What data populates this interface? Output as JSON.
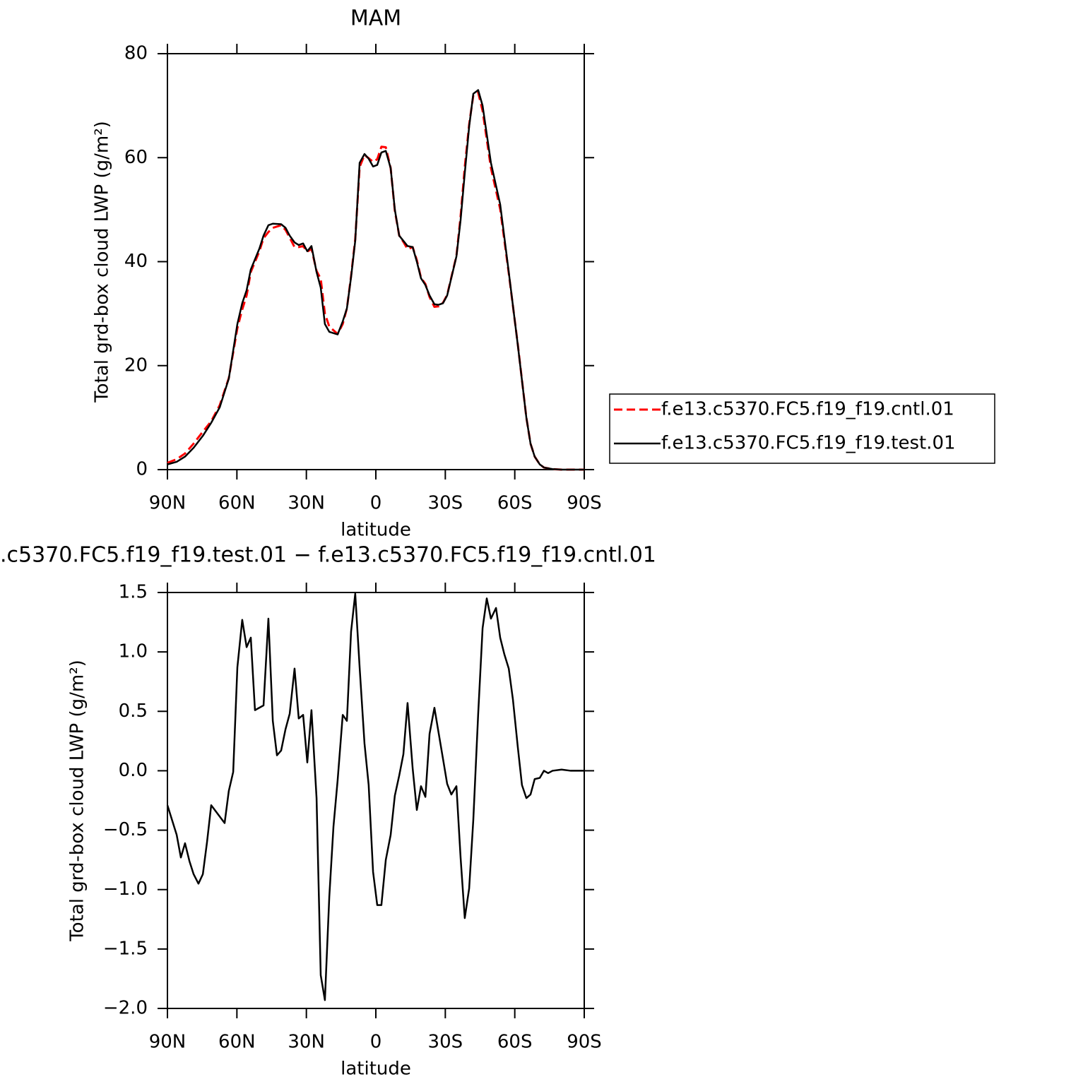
{
  "chart_data": [
    {
      "type": "line",
      "title": "MAM",
      "x_label": "latitude",
      "y_label": "Total grd-box cloud LWP (g/m²)",
      "x": [
        90,
        86,
        82.4,
        78.7,
        74.7,
        71.1,
        67.4,
        63.5,
        59.8,
        57.7,
        55.8,
        54,
        50.3,
        48.5,
        46.4,
        44.5,
        40.9,
        39,
        37.2,
        35.1,
        33.3,
        31.4,
        29.6,
        27.8,
        25.6,
        23.8,
        22,
        20.1,
        16.5,
        14.3,
        12.5,
        10.7,
        8.9,
        7,
        4.9,
        3.1,
        1.2,
        -0.6,
        -2.4,
        -4.3,
        -6.4,
        -8.2,
        -10.1,
        -11.9,
        -13.7,
        -15.9,
        -17.7,
        -19.5,
        -21.4,
        -23.2,
        -25.3,
        -27.1,
        -29,
        -30.8,
        -34.8,
        -36.6,
        -38.4,
        -40.3,
        -42.1,
        -44.2,
        -46.1,
        -49.7,
        -53.7,
        -57.4,
        -61.3,
        -65,
        -66.8,
        -68.6,
        -70.8,
        -72.6,
        -76.3,
        -80.2,
        -90
      ],
      "series": [
        {
          "name": "f.e13.c5370.FC5.f19_f19.cntl.01",
          "color": "#ff0000",
          "dash": true,
          "values": [
            1.3,
            2.0,
            3.1,
            5.0,
            7.3,
            9.3,
            12.4,
            17.6,
            27.2,
            30.8,
            33.5,
            38.0,
            42.0,
            44.5,
            45.7,
            46.5,
            47.0,
            46.1,
            44.6,
            42.8,
            42.8,
            43.0,
            41.9,
            42.5,
            38.2,
            36.7,
            30.0,
            27.5,
            26.1,
            28.0,
            31.0,
            37.2,
            44.3,
            58.2,
            60.5,
            59.9,
            59.2,
            59.7,
            62.1,
            62.0,
            58.0,
            49.8,
            45.0,
            43.8,
            42.4,
            42.8,
            40.3,
            36.9,
            35.7,
            33.2,
            31.3,
            31.4,
            32.1,
            33.6,
            41.1,
            48.7,
            58.2,
            66.4,
            72.0,
            72.5,
            69.0,
            58.0,
            50.1,
            37.8,
            24.1,
            10.0,
            5.0,
            2.5,
            1.0,
            0.4,
            0.1,
            0,
            0
          ]
        },
        {
          "name": "f.e13.c5370.FC5.f19_f19.test.01",
          "color": "#000000",
          "dash": false,
          "values": [
            1,
            1.5,
            2.5,
            4.2,
            6.5,
            9,
            12,
            17.5,
            28,
            32,
            34.5,
            38.5,
            42.5,
            45,
            47,
            47.3,
            47.2,
            46.5,
            45,
            43.7,
            43.2,
            43.5,
            42,
            43,
            38,
            35,
            28,
            26.5,
            26,
            28.5,
            31,
            37,
            44,
            59,
            60.7,
            59.8,
            58.3,
            58.6,
            61,
            61.3,
            58,
            50,
            45,
            44,
            43,
            42.8,
            40,
            36.8,
            35.5,
            33.5,
            31.8,
            31.7,
            32,
            33.5,
            41,
            48,
            57,
            66,
            72.3,
            73,
            70,
            59,
            51,
            38,
            24,
            10,
            5,
            2.5,
            1,
            0.4,
            0.1,
            0,
            0
          ]
        }
      ],
      "xlim": [
        90,
        -90
      ],
      "xticks": [
        {
          "value": 90,
          "label": "90N"
        },
        {
          "value": 60,
          "label": "60N"
        },
        {
          "value": 30,
          "label": "30N"
        },
        0,
        {
          "value": -30,
          "label": "30S"
        },
        {
          "value": -60,
          "label": "60S"
        },
        {
          "value": -90,
          "label": "90S"
        }
      ],
      "ylim": [
        0,
        80
      ],
      "yticks": [
        0,
        20,
        40,
        60,
        80
      ],
      "legend": "right"
    },
    {
      "type": "line",
      "title": ".c5370.FC5.f19_f19.test.01 − f.e13.c5370.FC5.f19_f19.cntl.01",
      "x_label": "latitude",
      "y_label": "Total grd-box cloud LWP (g/m²)",
      "x": [
        90,
        86,
        84.2,
        82.4,
        80.5,
        78.7,
        76.6,
        74.7,
        72.9,
        71.1,
        65.3,
        63.5,
        61.6,
        59.8,
        57.7,
        55.8,
        54,
        52.2,
        48.5,
        46.4,
        44.5,
        42.7,
        40.9,
        39,
        37.2,
        35.1,
        33.3,
        31.4,
        29.6,
        27.8,
        25.6,
        23.8,
        22,
        20.1,
        18.3,
        16.5,
        14.3,
        12.5,
        10.7,
        8.9,
        7,
        4.9,
        3.1,
        1.2,
        -0.6,
        -2.4,
        -4.3,
        -6.4,
        -8.2,
        -10.1,
        -11.9,
        -13.7,
        -15.9,
        -17.7,
        -19.5,
        -21.4,
        -23.2,
        -25.3,
        -27.1,
        -29,
        -30.8,
        -32.6,
        -34.8,
        -36.6,
        -38.4,
        -40.3,
        -42.1,
        -44.2,
        -46.1,
        -47.9,
        -49.7,
        -51.9,
        -53.7,
        -55.5,
        -57.4,
        -59.2,
        -61.3,
        -63.1,
        -65,
        -66.8,
        -68.6,
        -70.8,
        -72.6,
        -74.4,
        -76.3,
        -80.2,
        -84.2,
        -90
      ],
      "series": [
        {
          "color": "#000000",
          "dash": false,
          "values": [
            -0.29,
            -0.54,
            -0.73,
            -0.61,
            -0.76,
            -0.87,
            -0.95,
            -0.87,
            -0.6,
            -0.29,
            -0.44,
            -0.17,
            -0.01,
            0.87,
            1.27,
            1.04,
            1.12,
            0.51,
            0.55,
            1.28,
            0.42,
            0.13,
            0.17,
            0.35,
            0.48,
            0.86,
            0.44,
            0.47,
            0.07,
            0.51,
            -0.23,
            -1.72,
            -1.93,
            -1.06,
            -0.47,
            -0.08,
            0.47,
            0.42,
            1.17,
            1.49,
            0.87,
            0.23,
            -0.12,
            -0.85,
            -1.13,
            -1.13,
            -0.75,
            -0.54,
            -0.21,
            -0.04,
            0.14,
            0.57,
            0.02,
            -0.33,
            -0.13,
            -0.22,
            0.31,
            0.53,
            0.32,
            0.1,
            -0.11,
            -0.2,
            -0.13,
            -0.73,
            -1.24,
            -0.99,
            -0.41,
            0.48,
            1.2,
            1.45,
            1.28,
            1.37,
            1.12,
            0.98,
            0.86,
            0.6,
            0.2,
            -0.12,
            -0.23,
            -0.2,
            -0.07,
            -0.06,
            0,
            -0.02,
            0,
            0.01,
            0,
            0
          ]
        }
      ],
      "xlim": [
        90,
        -90
      ],
      "xticks": [
        {
          "value": 90,
          "label": "90N"
        },
        {
          "value": 60,
          "label": "60N"
        },
        {
          "value": 30,
          "label": "30N"
        },
        0,
        {
          "value": -30,
          "label": "30S"
        },
        {
          "value": -60,
          "label": "60S"
        },
        {
          "value": -90,
          "label": "90S"
        }
      ],
      "ylim": [
        -2,
        1.5
      ],
      "yticks": [
        {
          "value": -2,
          "label": "−2.0"
        },
        {
          "value": -1.5,
          "label": "−1.5"
        },
        {
          "value": -1,
          "label": "−1.0"
        },
        {
          "value": -0.5,
          "label": "−0.5"
        },
        {
          "value": 0,
          "label": "0.0"
        },
        {
          "value": 0.5,
          "label": "0.5"
        },
        {
          "value": 1,
          "label": "1.0"
        },
        1.5
      ]
    }
  ]
}
